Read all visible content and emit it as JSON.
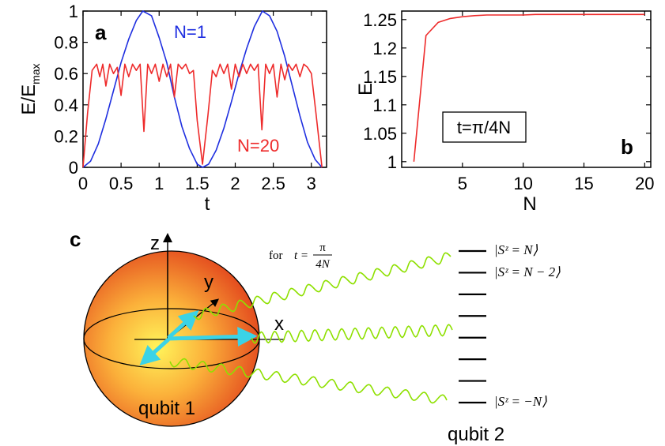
{
  "chart_data": [
    {
      "panel": "a",
      "type": "line",
      "xlabel": "t",
      "ylabel": "E/E",
      "ylabel_sub": "max",
      "xlim": [
        0,
        3.2
      ],
      "ylim": [
        0,
        1
      ],
      "xticks": [
        0,
        0.5,
        1,
        1.5,
        2,
        2.5,
        3
      ],
      "xtick_labels": [
        "0",
        "0.5",
        "1",
        "1.5",
        "2",
        "2.5",
        "3"
      ],
      "yticks": [
        0,
        0.2,
        0.4,
        0.6,
        0.8,
        1
      ],
      "ytick_labels": [
        "0",
        "0.2",
        "0.4",
        "0.6",
        "0.8",
        "1"
      ],
      "series": [
        {
          "name": "N=1",
          "color": "#1f2fe0",
          "x": [
            0,
            0.1,
            0.2,
            0.3,
            0.4,
            0.5,
            0.6,
            0.7,
            0.785,
            0.9,
            1.0,
            1.1,
            1.2,
            1.3,
            1.4,
            1.5,
            1.571,
            1.65,
            1.75,
            1.85,
            1.95,
            2.05,
            2.15,
            2.25,
            2.356,
            2.45,
            2.55,
            2.65,
            2.75,
            2.85,
            2.95,
            3.05,
            3.14
          ],
          "y": [
            0,
            0.04,
            0.15,
            0.31,
            0.49,
            0.67,
            0.82,
            0.94,
            1.0,
            0.97,
            0.83,
            0.67,
            0.45,
            0.26,
            0.12,
            0.02,
            0,
            0.02,
            0.11,
            0.25,
            0.42,
            0.6,
            0.76,
            0.9,
            1.0,
            0.97,
            0.87,
            0.71,
            0.52,
            0.33,
            0.16,
            0.05,
            0
          ]
        },
        {
          "name": "N=20",
          "color": "#ee2b2b",
          "x": [
            0,
            0.06,
            0.12,
            0.18,
            0.22,
            0.26,
            0.3,
            0.35,
            0.4,
            0.45,
            0.5,
            0.55,
            0.6,
            0.65,
            0.7,
            0.75,
            0.8,
            0.85,
            0.9,
            0.95,
            1.0,
            1.05,
            1.1,
            1.15,
            1.2,
            1.25,
            1.3,
            1.35,
            1.4,
            1.45,
            1.5,
            1.57,
            1.64,
            1.7,
            1.75,
            1.8,
            1.85,
            1.9,
            1.95,
            2.0,
            2.05,
            2.1,
            2.15,
            2.2,
            2.25,
            2.3,
            2.35,
            2.4,
            2.45,
            2.5,
            2.55,
            2.6,
            2.65,
            2.7,
            2.75,
            2.8,
            2.85,
            2.9,
            2.95,
            3.0,
            3.06,
            3.14
          ],
          "y": [
            0,
            0.35,
            0.62,
            0.66,
            0.58,
            0.66,
            0.52,
            0.66,
            0.6,
            0.64,
            0.46,
            0.66,
            0.58,
            0.66,
            0.62,
            0.66,
            0.23,
            0.66,
            0.6,
            0.66,
            0.55,
            0.66,
            0.58,
            0.66,
            0.45,
            0.66,
            0.63,
            0.66,
            0.6,
            0.62,
            0.3,
            0.02,
            0.33,
            0.62,
            0.58,
            0.66,
            0.6,
            0.66,
            0.5,
            0.66,
            0.58,
            0.66,
            0.6,
            0.66,
            0.62,
            0.66,
            0.24,
            0.66,
            0.6,
            0.66,
            0.45,
            0.66,
            0.56,
            0.66,
            0.62,
            0.66,
            0.58,
            0.66,
            0.64,
            0.6,
            0.35,
            0
          ]
        }
      ],
      "annotations": [
        "N=1",
        "N=20"
      ]
    },
    {
      "panel": "b",
      "type": "line",
      "xlabel": "N",
      "ylabel": "E",
      "xlim": [
        0,
        20.5
      ],
      "ylim": [
        0.99,
        1.265
      ],
      "xticks": [
        5,
        10,
        15,
        20
      ],
      "xtick_labels": [
        "5",
        "10",
        "15",
        "20"
      ],
      "yticks": [
        1,
        1.05,
        1.1,
        1.15,
        1.2,
        1.25
      ],
      "ytick_labels": [
        "1",
        "1.05",
        "1.1",
        "1.15",
        "1.2",
        "1.25"
      ],
      "series": [
        {
          "name": "E",
          "color": "#ee2b2b",
          "x": [
            1,
            2,
            3,
            4,
            5,
            6,
            7,
            8,
            9,
            10,
            11,
            12,
            13,
            14,
            15,
            16,
            17,
            18,
            19,
            20
          ],
          "y": [
            1.0,
            1.222,
            1.245,
            1.252,
            1.255,
            1.257,
            1.258,
            1.258,
            1.258,
            1.258,
            1.259,
            1.259,
            1.259,
            1.259,
            1.259,
            1.259,
            1.259,
            1.259,
            1.259,
            1.259
          ]
        }
      ],
      "annotation": "t=π/4N"
    }
  ],
  "panel_c": {
    "label": "c",
    "axis_labels": {
      "z": "z",
      "y": "y",
      "x": "x"
    },
    "formula_prefix": "for",
    "formula_lhs": "t =",
    "formula_num": "π",
    "formula_den": "4N",
    "qubit1_label": "qubit 1",
    "qubit2_label": "qubit 2",
    "state_top": "|Sᶻ = N⟩",
    "state_second": "|Sᶻ = N − 2⟩",
    "state_bottom": "|Sᶻ = −N⟩",
    "level_count": 8,
    "colors": {
      "arrow": "#3bd3e6",
      "wave": "#8ee000",
      "sphere_core": "#fff45a",
      "sphere_edge": "#e2441c"
    }
  }
}
